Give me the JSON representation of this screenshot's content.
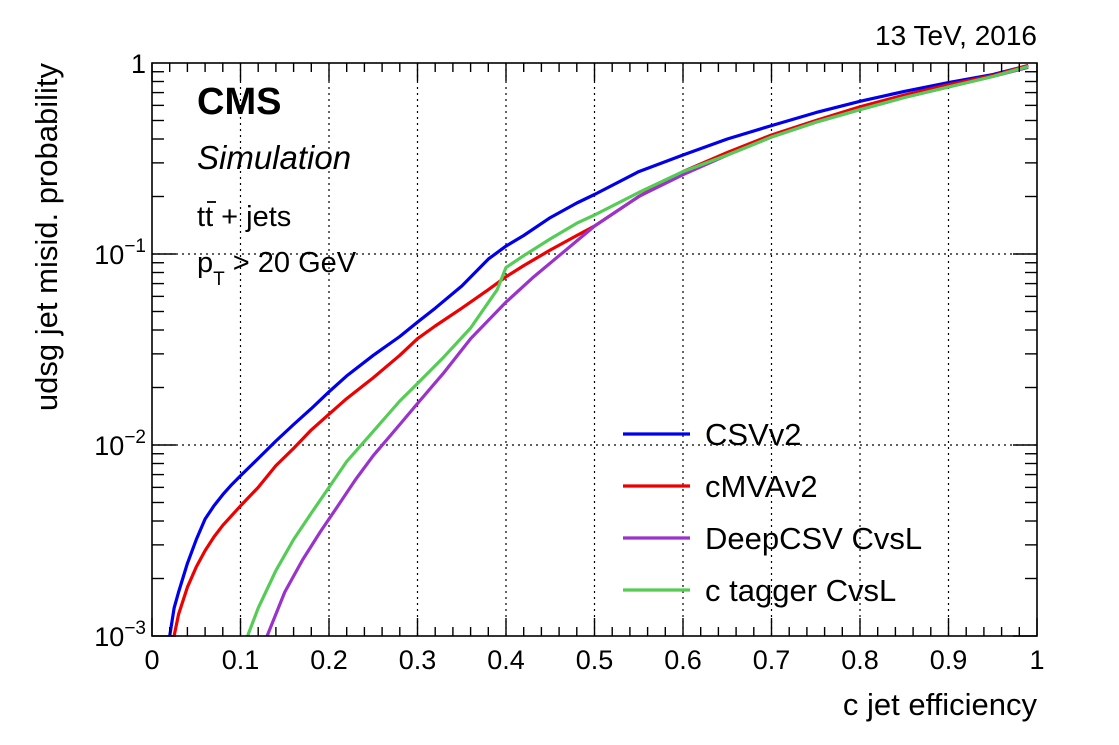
{
  "header": {
    "energy_label": "13 TeV, 2016",
    "experiment": "CMS",
    "subtitle": "Simulation",
    "sample_prefix": "t",
    "sample_tbar": "t",
    "sample_suffix": " + jets",
    "cut_p": "p",
    "cut_sub": "T",
    "cut_rest": " > 20 GeV"
  },
  "chart_data": {
    "type": "line",
    "xlabel": "c jet efficiency",
    "ylabel": "udsg jet misid. probability",
    "xlim": [
      0,
      1
    ],
    "ylim": [
      0.001,
      1
    ],
    "yscale": "log",
    "grid": true,
    "legend_position": "bottom-right",
    "x_ticks": [
      "0",
      "0.1",
      "0.2",
      "0.3",
      "0.4",
      "0.5",
      "0.6",
      "0.7",
      "0.8",
      "0.9",
      "1"
    ],
    "y_ticks": [
      {
        "value": 0.001,
        "base": "10",
        "exp": "−3"
      },
      {
        "value": 0.01,
        "base": "10",
        "exp": "−2"
      },
      {
        "value": 0.1,
        "base": "10",
        "exp": "−1"
      },
      {
        "value": 1,
        "base": "1",
        "exp": ""
      }
    ],
    "series": [
      {
        "name": "CSVv2",
        "color": "#0000ee",
        "points": [
          [
            0.02,
            0.001
          ],
          [
            0.025,
            0.0014
          ],
          [
            0.03,
            0.0017
          ],
          [
            0.04,
            0.0024
          ],
          [
            0.05,
            0.0032
          ],
          [
            0.06,
            0.0041
          ],
          [
            0.07,
            0.0048
          ],
          [
            0.08,
            0.0055
          ],
          [
            0.09,
            0.0062
          ],
          [
            0.1,
            0.0069
          ],
          [
            0.12,
            0.0085
          ],
          [
            0.14,
            0.0105
          ],
          [
            0.16,
            0.0128
          ],
          [
            0.18,
            0.0155
          ],
          [
            0.2,
            0.019
          ],
          [
            0.22,
            0.023
          ],
          [
            0.25,
            0.0295
          ],
          [
            0.28,
            0.037
          ],
          [
            0.3,
            0.044
          ],
          [
            0.32,
            0.052
          ],
          [
            0.35,
            0.068
          ],
          [
            0.38,
            0.094
          ],
          [
            0.4,
            0.11
          ],
          [
            0.42,
            0.125
          ],
          [
            0.45,
            0.155
          ],
          [
            0.48,
            0.185
          ],
          [
            0.5,
            0.205
          ],
          [
            0.55,
            0.27
          ],
          [
            0.6,
            0.33
          ],
          [
            0.65,
            0.4
          ],
          [
            0.7,
            0.47
          ],
          [
            0.75,
            0.55
          ],
          [
            0.8,
            0.63
          ],
          [
            0.85,
            0.71
          ],
          [
            0.9,
            0.79
          ],
          [
            0.95,
            0.87
          ],
          [
            0.99,
            0.97
          ]
        ]
      },
      {
        "name": "cMVAv2",
        "color": "#ee0000",
        "points": [
          [
            0.025,
            0.001
          ],
          [
            0.03,
            0.0013
          ],
          [
            0.04,
            0.0018
          ],
          [
            0.05,
            0.0023
          ],
          [
            0.06,
            0.0028
          ],
          [
            0.07,
            0.0033
          ],
          [
            0.08,
            0.0038
          ],
          [
            0.1,
            0.0048
          ],
          [
            0.12,
            0.006
          ],
          [
            0.14,
            0.0078
          ],
          [
            0.16,
            0.0096
          ],
          [
            0.18,
            0.012
          ],
          [
            0.2,
            0.0145
          ],
          [
            0.22,
            0.0175
          ],
          [
            0.25,
            0.0225
          ],
          [
            0.28,
            0.0295
          ],
          [
            0.3,
            0.036
          ],
          [
            0.32,
            0.042
          ],
          [
            0.35,
            0.052
          ],
          [
            0.38,
            0.065
          ],
          [
            0.4,
            0.076
          ],
          [
            0.42,
            0.087
          ],
          [
            0.45,
            0.105
          ],
          [
            0.48,
            0.125
          ],
          [
            0.5,
            0.14
          ],
          [
            0.55,
            0.2
          ],
          [
            0.6,
            0.27
          ],
          [
            0.65,
            0.34
          ],
          [
            0.7,
            0.42
          ],
          [
            0.75,
            0.5
          ],
          [
            0.8,
            0.59
          ],
          [
            0.85,
            0.68
          ],
          [
            0.9,
            0.77
          ],
          [
            0.95,
            0.86
          ],
          [
            0.99,
            0.97
          ]
        ]
      },
      {
        "name": "DeepCSV CvsL",
        "color": "#9933cc",
        "points": [
          [
            0.13,
            0.001
          ],
          [
            0.15,
            0.0017
          ],
          [
            0.17,
            0.0025
          ],
          [
            0.19,
            0.0035
          ],
          [
            0.21,
            0.0048
          ],
          [
            0.23,
            0.0066
          ],
          [
            0.25,
            0.0088
          ],
          [
            0.28,
            0.0128
          ],
          [
            0.3,
            0.0165
          ],
          [
            0.33,
            0.024
          ],
          [
            0.36,
            0.036
          ],
          [
            0.4,
            0.056
          ],
          [
            0.43,
            0.075
          ],
          [
            0.46,
            0.098
          ],
          [
            0.5,
            0.14
          ],
          [
            0.55,
            0.2
          ],
          [
            0.6,
            0.26
          ],
          [
            0.65,
            0.33
          ],
          [
            0.7,
            0.41
          ],
          [
            0.75,
            0.49
          ],
          [
            0.8,
            0.57
          ],
          [
            0.85,
            0.66
          ],
          [
            0.9,
            0.75
          ],
          [
            0.95,
            0.85
          ],
          [
            0.99,
            0.95
          ]
        ]
      },
      {
        "name": "c tagger CvsL",
        "color": "#55cc55",
        "points": [
          [
            0.108,
            0.001
          ],
          [
            0.12,
            0.0014
          ],
          [
            0.14,
            0.0022
          ],
          [
            0.16,
            0.0032
          ],
          [
            0.18,
            0.0044
          ],
          [
            0.2,
            0.006
          ],
          [
            0.22,
            0.0082
          ],
          [
            0.25,
            0.0118
          ],
          [
            0.28,
            0.017
          ],
          [
            0.3,
            0.021
          ],
          [
            0.33,
            0.029
          ],
          [
            0.36,
            0.041
          ],
          [
            0.39,
            0.065
          ],
          [
            0.4,
            0.085
          ],
          [
            0.42,
            0.098
          ],
          [
            0.45,
            0.12
          ],
          [
            0.48,
            0.145
          ],
          [
            0.5,
            0.16
          ],
          [
            0.55,
            0.21
          ],
          [
            0.6,
            0.27
          ],
          [
            0.65,
            0.33
          ],
          [
            0.7,
            0.41
          ],
          [
            0.75,
            0.49
          ],
          [
            0.8,
            0.57
          ],
          [
            0.85,
            0.66
          ],
          [
            0.9,
            0.75
          ],
          [
            0.95,
            0.85
          ],
          [
            0.99,
            0.96
          ]
        ]
      }
    ]
  }
}
